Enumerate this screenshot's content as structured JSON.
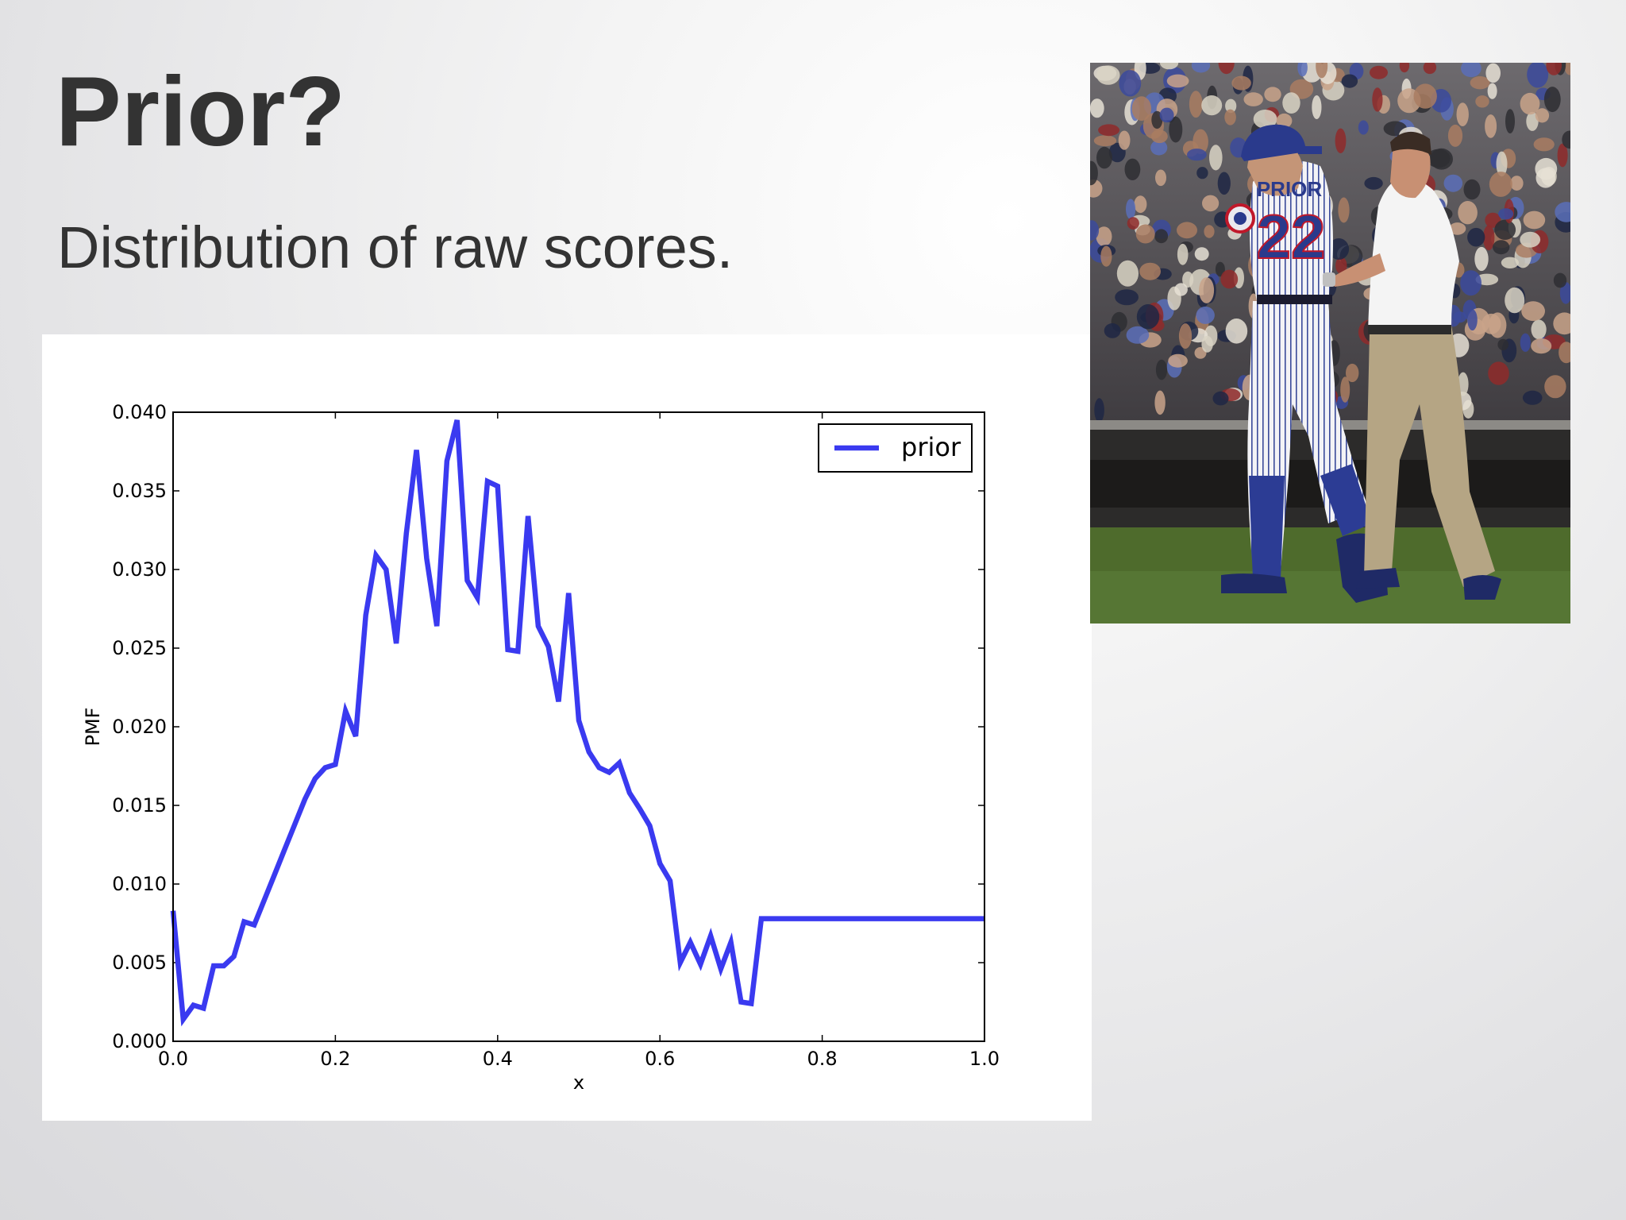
{
  "slide": {
    "title": "Prior?",
    "subtitle": "Distribution of raw scores.",
    "background": "#e6e6e8",
    "text_color": "#333333"
  },
  "photo": {
    "jersey_name": "PRIOR",
    "jersey_number": "22",
    "jersey_color": "#f3f3f6",
    "pinstripe_color": "#3a4a9a",
    "accent_color": "#2a3a8c"
  },
  "chart_data": {
    "type": "line",
    "title": "",
    "xlabel": "x",
    "ylabel": "PMF",
    "xlim": [
      0.0,
      1.0
    ],
    "ylim": [
      0.0,
      0.04
    ],
    "xticks": [
      "0.0",
      "0.2",
      "0.4",
      "0.6",
      "0.8",
      "1.0"
    ],
    "yticks": [
      "0.000",
      "0.005",
      "0.010",
      "0.015",
      "0.020",
      "0.025",
      "0.030",
      "0.035",
      "0.040"
    ],
    "grid": false,
    "legend_position": "top-right",
    "line_color": "#3a3af0",
    "series": [
      {
        "name": "prior",
        "x": [
          0.0,
          0.0125,
          0.025,
          0.0375,
          0.05,
          0.0625,
          0.075,
          0.0875,
          0.1,
          0.1125,
          0.125,
          0.1375,
          0.15,
          0.1625,
          0.175,
          0.1875,
          0.2,
          0.2125,
          0.225,
          0.2375,
          0.25,
          0.2625,
          0.275,
          0.2875,
          0.3,
          0.3125,
          0.325,
          0.3375,
          0.35,
          0.3625,
          0.375,
          0.3875,
          0.4,
          0.4125,
          0.425,
          0.4375,
          0.45,
          0.4625,
          0.475,
          0.4875,
          0.5,
          0.5125,
          0.525,
          0.5375,
          0.55,
          0.5625,
          0.575,
          0.5875,
          0.6,
          0.6125,
          0.625,
          0.6375,
          0.65,
          0.6625,
          0.675,
          0.6875,
          0.7,
          0.7125,
          0.725,
          0.7375,
          0.75,
          0.7625,
          0.775,
          0.7875,
          0.8,
          0.8125,
          0.825,
          0.8375,
          0.85,
          0.8625,
          0.875,
          0.8875,
          0.9,
          0.9125,
          0.925,
          0.9375,
          0.95,
          0.9625,
          0.975,
          0.9875,
          1.0
        ],
        "y": [
          0.0083,
          0.0014,
          0.0023,
          0.0021,
          0.0048,
          0.0048,
          0.0054,
          0.0076,
          0.0074,
          0.009,
          0.0106,
          0.0122,
          0.0138,
          0.0154,
          0.0167,
          0.0174,
          0.0176,
          0.021,
          0.0194,
          0.0271,
          0.0309,
          0.03,
          0.0253,
          0.0323,
          0.0376,
          0.0307,
          0.0264,
          0.0369,
          0.0395,
          0.0293,
          0.0282,
          0.0356,
          0.0353,
          0.0249,
          0.0248,
          0.0334,
          0.0264,
          0.0251,
          0.0216,
          0.0285,
          0.0204,
          0.0184,
          0.0174,
          0.0171,
          0.0177,
          0.0158,
          0.0148,
          0.0137,
          0.0113,
          0.0102,
          0.005,
          0.0063,
          0.0049,
          0.0067,
          0.0046,
          0.0063,
          0.0025,
          0.0024,
          0.0078,
          0.0078,
          0.0078,
          0.0078,
          0.0078,
          0.0078,
          0.0078,
          0.0078,
          0.0078,
          0.0078,
          0.0078,
          0.0078,
          0.0078,
          0.0078,
          0.0078,
          0.0078,
          0.0078,
          0.0078,
          0.0078,
          0.0078,
          0.0078,
          0.0078,
          0.0078
        ]
      }
    ]
  }
}
